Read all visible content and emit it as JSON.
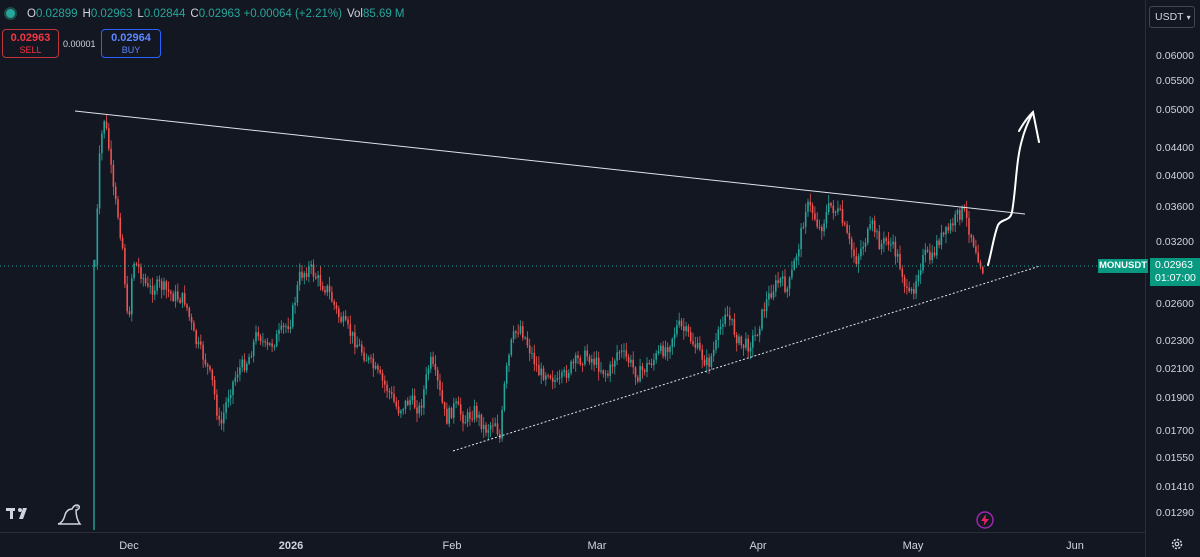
{
  "header": {
    "ohlc": [
      {
        "key": "O",
        "value": "0.02899"
      },
      {
        "key": "H",
        "value": "0.02963"
      },
      {
        "key": "L",
        "value": "0.02844"
      },
      {
        "key": "C",
        "value": "0.02963 +0.00064 (+2.21%)"
      },
      {
        "key": "Vol",
        "value": "85.69 M"
      }
    ]
  },
  "trade": {
    "sell_price": "0.02963",
    "sell_label": "SELL",
    "spread": "0.00001",
    "buy_price": "0.02964",
    "buy_label": "BUY"
  },
  "currency_button": "USDT",
  "price_axis": {
    "ticks": [
      "0.06000",
      "0.05500",
      "0.05000",
      "0.04400",
      "0.04000",
      "0.03600",
      "0.03200",
      "0.02600",
      "0.02300",
      "0.02100",
      "0.01900",
      "0.01700",
      "0.01550",
      "0.01410",
      "0.01290"
    ],
    "current_price": "0.02963",
    "countdown": "01:07:00",
    "symbol": "MONUSDT"
  },
  "time_axis": {
    "ticks": [
      "Dec",
      "2026",
      "Feb",
      "Mar",
      "Apr",
      "May",
      "Jun"
    ]
  },
  "colors": {
    "background": "#131722",
    "up": "#26a69a",
    "down": "#ef5350",
    "sell": "#f23645",
    "buy": "#2962ff",
    "label": "#089981"
  },
  "icons": {
    "logo": "tradingview-logo-icon",
    "dino": "dino-icon",
    "lightning": "lightning-icon",
    "settings": "gear-icon"
  }
}
